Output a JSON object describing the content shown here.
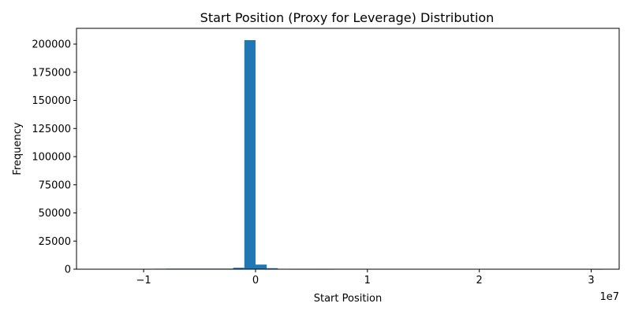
{
  "chart_data": {
    "type": "histogram",
    "title": "Start Position (Proxy for Leverage) Distribution",
    "xlabel": "Start Position",
    "ylabel": "Frequency",
    "x_offset_label": "1e7",
    "xlim": [
      -16000000,
      32500000
    ],
    "ylim": [
      0,
      214000
    ],
    "x_ticks": [
      {
        "value": -10000000,
        "label": "−1"
      },
      {
        "value": 0,
        "label": "0"
      },
      {
        "value": 10000000,
        "label": "1"
      },
      {
        "value": 20000000,
        "label": "2"
      },
      {
        "value": 30000000,
        "label": "3"
      }
    ],
    "y_ticks": [
      {
        "value": 0,
        "label": "0"
      },
      {
        "value": 25000,
        "label": "25000"
      },
      {
        "value": 50000,
        "label": "50000"
      },
      {
        "value": 75000,
        "label": "75000"
      },
      {
        "value": 100000,
        "label": "100000"
      },
      {
        "value": 125000,
        "label": "125000"
      },
      {
        "value": 150000,
        "label": "150000"
      },
      {
        "value": 175000,
        "label": "175000"
      },
      {
        "value": 200000,
        "label": "200000"
      }
    ],
    "bins": {
      "start": -14000000,
      "width": 1000000,
      "counts": [
        0,
        0,
        0,
        0,
        0,
        400,
        500,
        500,
        500,
        500,
        500,
        500,
        1300,
        203500,
        4100,
        900,
        100,
        30,
        20,
        10,
        10,
        0,
        0,
        0,
        0,
        0,
        0,
        0,
        0,
        0,
        0,
        0,
        0,
        0,
        0,
        0,
        0,
        0,
        0,
        0,
        0,
        0,
        0,
        0,
        5
      ]
    },
    "bar_color": "#1f77b4",
    "grid": false,
    "legend": "none"
  }
}
